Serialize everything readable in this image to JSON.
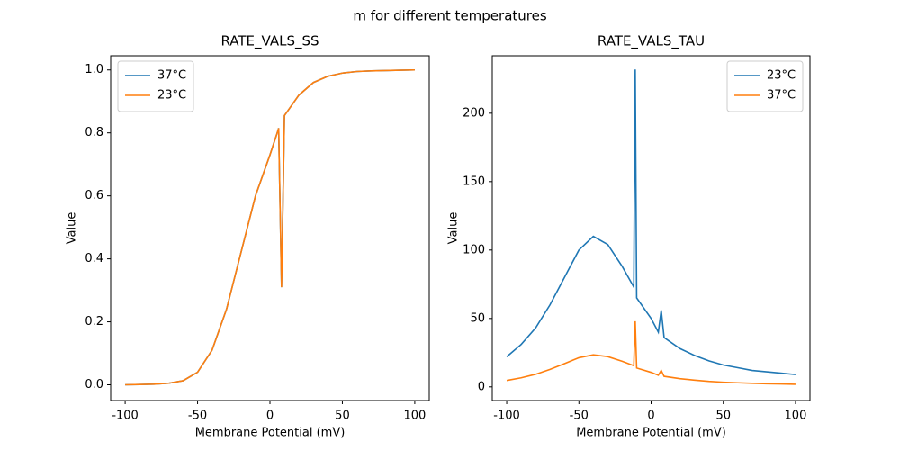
{
  "title": "m for different temperatures",
  "chart_data": [
    {
      "type": "line",
      "title": "RATE_VALS_SS",
      "x_label": "Membrane Potential (mV)",
      "y_label": "Value",
      "x": [
        -100,
        -90,
        -80,
        -70,
        -60,
        -50,
        -40,
        -30,
        -20,
        -10,
        0,
        5,
        6,
        8,
        10,
        20,
        30,
        40,
        50,
        60,
        70,
        80,
        90,
        100
      ],
      "series": [
        {
          "name": "37°C",
          "color": "#1f77b4",
          "values": [
            0.0,
            0.001,
            0.002,
            0.005,
            0.013,
            0.04,
            0.11,
            0.24,
            0.42,
            0.6,
            0.73,
            0.8,
            0.815,
            0.31,
            0.855,
            0.92,
            0.96,
            0.98,
            0.99,
            0.995,
            0.997,
            0.998,
            0.999,
            1.0
          ]
        },
        {
          "name": "23°C",
          "color": "#ff7f0e",
          "values": [
            0.0,
            0.001,
            0.002,
            0.005,
            0.013,
            0.04,
            0.11,
            0.24,
            0.42,
            0.6,
            0.73,
            0.8,
            0.815,
            0.31,
            0.855,
            0.92,
            0.96,
            0.98,
            0.99,
            0.995,
            0.997,
            0.998,
            0.999,
            1.0
          ]
        }
      ],
      "xlim": [
        -110,
        110
      ],
      "ylim": [
        -0.05,
        1.045
      ],
      "xticks": [
        -100,
        -50,
        0,
        50,
        100
      ],
      "yticks": [
        {
          "value": 0,
          "label": "0.0"
        },
        0.2,
        0.4,
        0.6,
        0.8,
        {
          "value": 1,
          "label": "1.0"
        }
      ],
      "legend": "upper left"
    },
    {
      "type": "line",
      "title": "RATE_VALS_TAU",
      "x_label": "Membrane Potential (mV)",
      "y_label": "Value",
      "x": [
        -100,
        -90,
        -80,
        -70,
        -60,
        -50,
        -40,
        -30,
        -20,
        -12,
        -11,
        -10,
        0,
        5,
        7,
        9,
        20,
        30,
        40,
        50,
        60,
        70,
        80,
        90,
        100
      ],
      "series": [
        {
          "name": "23°C",
          "color": "#1f77b4",
          "values": [
            22,
            31,
            43,
            60,
            80,
            100,
            110,
            104,
            88,
            73,
            232,
            65,
            50,
            40,
            56,
            36,
            28,
            23,
            19,
            16,
            14,
            12,
            11,
            10,
            9
          ]
        },
        {
          "name": "37°C",
          "color": "#ff7f0e",
          "values": [
            4.7,
            6.6,
            9.2,
            12.8,
            17,
            21.3,
            23.4,
            22.1,
            18.7,
            15.5,
            48,
            13.8,
            10.6,
            8.5,
            12,
            7.7,
            6,
            4.9,
            4,
            3.4,
            3,
            2.6,
            2.3,
            2.1,
            1.9
          ]
        }
      ],
      "xlim": [
        -110,
        110
      ],
      "ylim": [
        -10,
        242
      ],
      "xticks": [
        -100,
        -50,
        0,
        50,
        100
      ],
      "yticks": [
        0,
        50,
        100,
        150,
        200
      ],
      "legend": "upper right"
    }
  ]
}
